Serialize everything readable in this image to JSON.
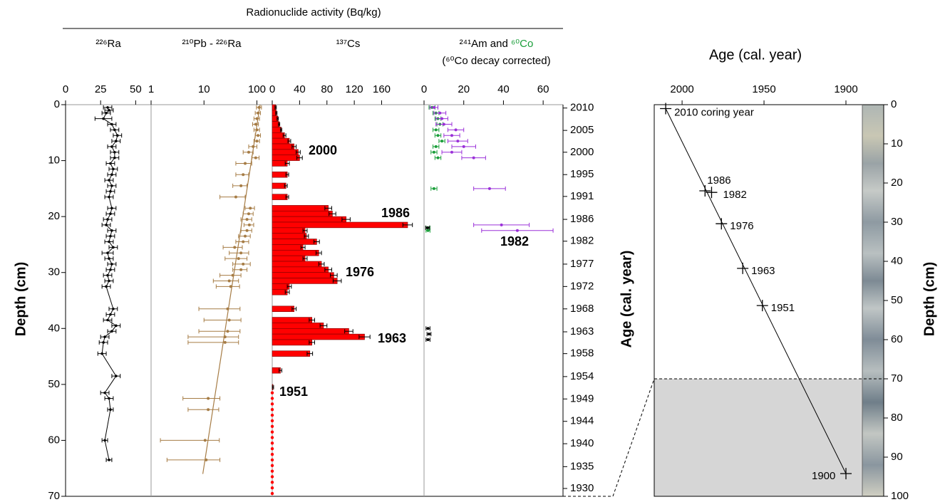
{
  "header": "Radionuclide activity (Bq/kg)",
  "depth_axis": {
    "label": "Depth (cm)",
    "ylim": [
      0,
      70
    ],
    "yticks": [
      0,
      10,
      20,
      30,
      40,
      50,
      60,
      70
    ]
  },
  "age_axis": {
    "label": "Age (cal. year)",
    "ticks": [
      {
        "value": 0.6,
        "label": "2010"
      },
      {
        "value": 4.6,
        "label": "2005"
      },
      {
        "value": 8.5,
        "label": "2000"
      },
      {
        "value": 12.5,
        "label": "1995"
      },
      {
        "value": 16.4,
        "label": "1991"
      },
      {
        "value": 20.5,
        "label": "1986"
      },
      {
        "value": 24.4,
        "label": "1982"
      },
      {
        "value": 28.5,
        "label": "1977"
      },
      {
        "value": 32.5,
        "label": "1972"
      },
      {
        "value": 36.5,
        "label": "1968"
      },
      {
        "value": 40.6,
        "label": "1963"
      },
      {
        "value": 44.5,
        "label": "1958"
      },
      {
        "value": 48.6,
        "label": "1954"
      },
      {
        "value": 52.6,
        "label": "1949"
      },
      {
        "value": 56.6,
        "label": "1944"
      },
      {
        "value": 60.6,
        "label": "1940"
      },
      {
        "value": 64.7,
        "label": "1935"
      },
      {
        "value": 68.6,
        "label": "1930"
      }
    ]
  },
  "chart_data": [
    {
      "type": "line",
      "title": "²²⁶Ra",
      "xlim": [
        0,
        61
      ],
      "xticks": [
        0,
        25,
        50
      ],
      "series": [
        {
          "color": "#000000",
          "depth": [
            0.5,
            1,
            1.5,
            2.5,
            3.5,
            4.5,
            5.5,
            6.5,
            7.5,
            8.5,
            9.5,
            10.5,
            11.5,
            12.5,
            13.5,
            14.5,
            15.5,
            16.5,
            18.5,
            19.5,
            20.5,
            21.5,
            22.5,
            23.5,
            24.5,
            25.5,
            26.5,
            27.5,
            28.5,
            29.5,
            30.5,
            31.5,
            32.5,
            36.5,
            37.5,
            38.5,
            39.5,
            40.5,
            41.5,
            42.5,
            44.5,
            48.5,
            51.5,
            52.5,
            54.5,
            60,
            63.5
          ],
          "values": [
            30,
            31,
            29,
            27,
            33,
            35,
            37,
            36,
            33,
            35,
            35,
            32,
            34,
            33,
            31,
            33,
            32,
            31,
            33,
            32,
            30,
            29,
            33,
            32,
            31,
            34,
            30,
            31,
            33,
            32,
            30,
            31,
            29,
            34,
            32,
            30,
            36,
            33,
            28,
            27,
            26,
            36,
            28,
            31,
            32,
            28,
            31
          ],
          "errors": [
            3,
            3,
            3,
            6,
            3,
            3,
            3,
            3,
            3,
            3,
            3,
            3,
            3,
            3,
            3,
            3,
            3,
            3,
            3,
            3,
            3,
            3,
            3,
            3,
            3,
            3,
            4,
            3,
            3,
            3,
            3,
            3,
            3,
            3,
            3,
            3,
            3,
            3,
            3,
            3,
            3,
            3,
            3,
            3,
            2,
            2,
            2
          ]
        }
      ]
    },
    {
      "type": "scatter",
      "title": "²¹⁰Pb - ²²⁶Ra",
      "xlog": true,
      "xlim": [
        1,
        195
      ],
      "xticks": [
        1,
        10,
        100
      ],
      "series": [
        {
          "color": "#a67c45",
          "depth": [
            0.5,
            1.5,
            2.5,
            3.5,
            4.5,
            5.5,
            6.5,
            7.5,
            8.5,
            9.5,
            10.5,
            12.5,
            14.5,
            16.5,
            18.5,
            19.5,
            20.5,
            21.5,
            22.5,
            23.5,
            24.5,
            25.5,
            26.5,
            27.5,
            28.5,
            29.5,
            30.5,
            31.5,
            32.5,
            36.5,
            38.5,
            40.5,
            41.5,
            42.5,
            52.5,
            54.5,
            60,
            63.5
          ],
          "values": [
            110,
            105,
            100,
            95,
            100,
            105,
            100,
            85,
            70,
            95,
            60,
            55,
            50,
            40,
            75,
            70,
            65,
            72,
            65,
            60,
            55,
            38,
            50,
            45,
            55,
            50,
            35,
            30,
            32,
            28,
            30,
            28,
            25,
            25,
            12,
            12,
            10.5,
            11
          ],
          "errors": [
            12,
            12,
            12,
            12,
            12,
            12,
            12,
            15,
            15,
            15,
            20,
            15,
            15,
            20,
            15,
            15,
            15,
            15,
            15,
            15,
            15,
            15,
            20,
            20,
            20,
            15,
            15,
            15,
            15,
            20,
            20,
            20,
            20,
            20,
            8,
            7,
            9,
            9
          ]
        }
      ],
      "fit": {
        "color": "#a67c45",
        "depth": [
          0,
          66
        ],
        "values": [
          115,
          9.5
        ]
      }
    },
    {
      "type": "bar",
      "title": "¹³⁷Cs",
      "xlim": [
        0,
        222
      ],
      "xticks": [
        0,
        40,
        80,
        120,
        160
      ],
      "annotations": [
        "2000",
        "1986",
        "1976",
        "1963",
        "1951"
      ],
      "annotation_color": "#ff1a1a",
      "series": [
        {
          "color": "#ff0000",
          "depth": [
            0.5,
            1.5,
            2.5,
            3.5,
            4.5,
            5.5,
            6.5,
            7.5,
            8.5,
            9.5,
            10.5,
            12.5,
            14.5,
            16.5,
            18.5,
            19.5,
            20.5,
            21.5,
            22.5,
            23.5,
            24.5,
            25.5,
            26.5,
            27.5,
            28.5,
            29.5,
            30.5,
            31.5,
            32.5,
            33.5,
            36.5,
            38.5,
            39.5,
            40.5,
            41.5,
            42.5,
            44.5,
            47.5,
            50.5,
            51.5,
            52.5,
            53.5,
            54.5,
            55.5,
            56.5,
            57.5,
            58.5,
            59.5,
            60.5,
            61.5,
            62.5,
            63.5,
            64.5,
            65.5,
            66.5,
            67.5,
            68.5,
            69.5
          ],
          "values": [
            5,
            6,
            8,
            10,
            13,
            18,
            25,
            32,
            38,
            40,
            22,
            22,
            20,
            22,
            82,
            88,
            108,
            198,
            48,
            50,
            65,
            45,
            68,
            48,
            72,
            82,
            90,
            95,
            25,
            22,
            32,
            58,
            75,
            112,
            135,
            58,
            55,
            12,
            1,
            0,
            0,
            0,
            0,
            0,
            0,
            0,
            0,
            0,
            0,
            0,
            0,
            0,
            0,
            0,
            0,
            0,
            0,
            0
          ],
          "errors": [
            1,
            1,
            1,
            1,
            1,
            2,
            2,
            3,
            3,
            4,
            3,
            2,
            2,
            2,
            5,
            5,
            6,
            7,
            3,
            3,
            4,
            3,
            4,
            3,
            4,
            5,
            5,
            6,
            3,
            3,
            3,
            4,
            5,
            6,
            8,
            4,
            4,
            2,
            1,
            0,
            0,
            0,
            0,
            0,
            0,
            0,
            0,
            0,
            0,
            0,
            0,
            0,
            0,
            0,
            0,
            0,
            0,
            0
          ]
        }
      ]
    },
    {
      "type": "scatter",
      "title": [
        "²⁴¹Am and ",
        "⁶⁰Co"
      ],
      "title_colors": [
        "#000000",
        "#1a9e3a"
      ],
      "subtitle": "(⁶⁰Co decay corrected)",
      "subtitle_color": "#9b30d9",
      "xlim": [
        0,
        70
      ],
      "xticks": [
        0,
        20,
        40,
        60
      ],
      "annotations": [
        "1982"
      ],
      "annotation_color": "#9b30d9",
      "series": [
        {
          "color": "#1a9e3a",
          "depth": [
            0.5,
            1.5,
            2.5,
            3.5,
            4.5,
            5.5,
            6.5,
            7.5,
            8.5,
            9.5,
            15,
            22,
            22.5
          ],
          "values": [
            4,
            6,
            7,
            8,
            6,
            7,
            9,
            6,
            5,
            7,
            5,
            2,
            2
          ],
          "errors": [
            1.5,
            1.5,
            1.5,
            1.5,
            1.5,
            1.5,
            1.5,
            1.5,
            1.5,
            1.5,
            1.5,
            1,
            1
          ]
        },
        {
          "color": "#9b30d9",
          "depth": [
            0.5,
            1.5,
            2.5,
            3.5,
            4.5,
            5.5,
            6.5,
            7.5,
            8.5,
            9.5,
            15,
            21.5,
            22.5
          ],
          "values": [
            5,
            8,
            9,
            10,
            16,
            14,
            17,
            20,
            14,
            25,
            33,
            39,
            47
          ],
          "errors": [
            2,
            3,
            3,
            4,
            4,
            4,
            5,
            6,
            5,
            6,
            8,
            14,
            18
          ]
        },
        {
          "color": "#000000",
          "depth": [
            22,
            40,
            41,
            42
          ],
          "values": [
            1.8,
            2,
            2.5,
            2
          ],
          "errors": [
            1,
            1,
            1,
            1
          ]
        }
      ]
    },
    {
      "type": "scatter",
      "title": "Age (cal. year)",
      "ylabel": "Depth (cm)",
      "xlim": [
        2017,
        1890
      ],
      "xticks": [
        2000,
        1950,
        1900
      ],
      "ylim": [
        0,
        100
      ],
      "yticks": [
        0,
        10,
        20,
        30,
        40,
        50,
        60,
        70,
        80,
        90,
        100
      ],
      "x": [
        2010,
        1986,
        1982,
        1976,
        1963,
        1951,
        1900
      ],
      "values": [
        1,
        22,
        22.4,
        30.4,
        41.8,
        51.3,
        94.2
      ],
      "labels": [
        "2010 coring year",
        "1986",
        "1982",
        "1976",
        "1963",
        "1951",
        "1900"
      ],
      "shaded_below": 70,
      "color": "#000000"
    }
  ]
}
